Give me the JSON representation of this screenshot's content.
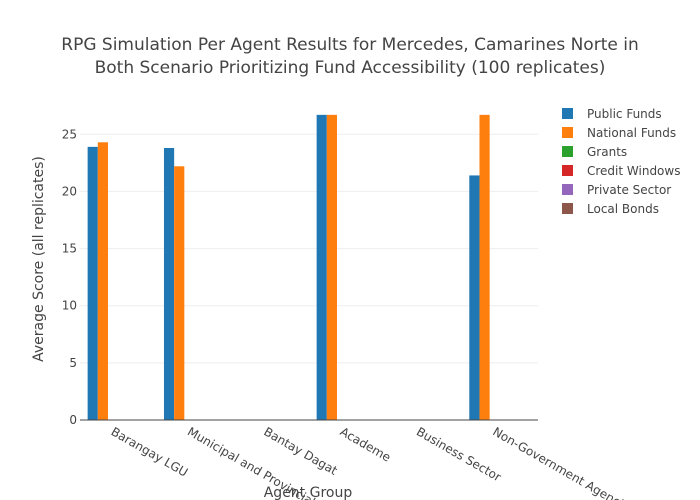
{
  "chart_data": {
    "type": "bar",
    "title_lines": [
      "RPG Simulation Per Agent Results for Mercedes, Camarines Norte in",
      "Both Scenario Prioritizing Fund Accessibility (100 replicates)"
    ],
    "xlabel": "Agent Group",
    "ylabel": "Average Score (all replicates)",
    "ylim": [
      0,
      28
    ],
    "yticks": [
      0,
      5,
      10,
      15,
      20,
      25
    ],
    "grid": true,
    "legend_position": "top-right",
    "categories": [
      "Barangay LGU",
      "Municipal and Provincial LGU",
      "Bantay Dagat",
      "Academe",
      "Business Sector",
      "Non-Government Agencies"
    ],
    "series": [
      {
        "name": "Public Funds",
        "color": "#1f77b4",
        "values": [
          23.9,
          23.8,
          0,
          26.7,
          0,
          21.4
        ]
      },
      {
        "name": "National Funds",
        "color": "#ff7f0e",
        "values": [
          24.3,
          22.2,
          0,
          26.7,
          0,
          26.7
        ]
      },
      {
        "name": "Grants",
        "color": "#2ca02c",
        "values": [
          0,
          0,
          0,
          0,
          0,
          0
        ]
      },
      {
        "name": "Credit Windows",
        "color": "#d62728",
        "values": [
          0,
          0,
          0,
          0,
          0,
          0
        ]
      },
      {
        "name": "Private Sector",
        "color": "#9467bd",
        "values": [
          0,
          0,
          0,
          0,
          0,
          0
        ]
      },
      {
        "name": "Local Bonds",
        "color": "#8c564b",
        "values": [
          0,
          0,
          0,
          0,
          0,
          0
        ]
      }
    ]
  }
}
